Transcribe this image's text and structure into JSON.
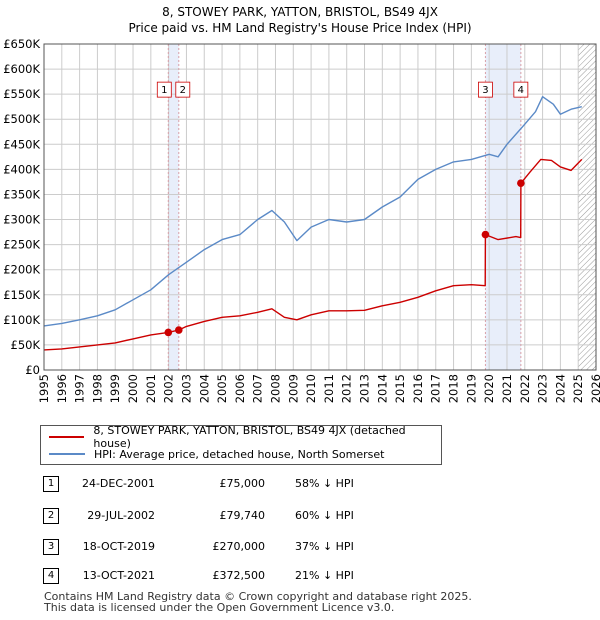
{
  "title_line1": "8, STOWEY PARK, YATTON, BRISTOL, BS49 4JX",
  "title_line2": "Price paid vs. HM Land Registry's House Price Index (HPI)",
  "colors": {
    "property": "#cc0000",
    "hpi": "#5b8ac7",
    "band": "#e8eefa",
    "grid": "#cccccc",
    "hatch": "#999999",
    "vline": "#d9a0a8"
  },
  "legend": {
    "property_label": "8, STOWEY PARK, YATTON, BRISTOL, BS49 4JX (detached house)",
    "hpi_label": "HPI: Average price, detached house, North Somerset"
  },
  "transactions": [
    {
      "num": "1",
      "date": "24-DEC-2001",
      "price": "£75,000",
      "hpi_diff": "58% ↓ HPI"
    },
    {
      "num": "2",
      "date": "29-JUL-2002",
      "price": "£79,740",
      "hpi_diff": "60% ↓ HPI"
    },
    {
      "num": "3",
      "date": "18-OCT-2019",
      "price": "£270,000",
      "hpi_diff": "37% ↓ HPI"
    },
    {
      "num": "4",
      "date": "13-OCT-2021",
      "price": "£372,500",
      "hpi_diff": "21% ↓ HPI"
    }
  ],
  "footer_line1": "Contains HM Land Registry data © Crown copyright and database right 2025.",
  "footer_line2": "This data is licensed under the Open Government Licence v3.0.",
  "chart_data": {
    "type": "line",
    "title": "Price paid vs. HM Land Registry's House Price Index (HPI)",
    "xlim": [
      1995,
      2026
    ],
    "ylim": [
      0,
      650000
    ],
    "x_ticks": [
      1995,
      1996,
      1997,
      1998,
      1999,
      2000,
      2001,
      2002,
      2003,
      2004,
      2005,
      2006,
      2007,
      2008,
      2009,
      2010,
      2011,
      2012,
      2013,
      2014,
      2015,
      2016,
      2017,
      2018,
      2019,
      2020,
      2021,
      2022,
      2023,
      2024,
      2025,
      2026
    ],
    "y_ticks": [
      0,
      50000,
      100000,
      150000,
      200000,
      250000,
      300000,
      350000,
      400000,
      450000,
      500000,
      550000,
      600000,
      650000
    ],
    "y_tick_labels": [
      "£0",
      "£50K",
      "£100K",
      "£150K",
      "£200K",
      "£250K",
      "£300K",
      "£350K",
      "£400K",
      "£450K",
      "£500K",
      "£550K",
      "£600K",
      "£650K"
    ],
    "grid": true,
    "shaded_periods": [
      [
        2001.98,
        2002.57
      ],
      [
        2019.79,
        2021.78
      ]
    ],
    "future_hatch_from": 2025.0,
    "series": [
      {
        "name": "8, STOWEY PARK, YATTON, BRISTOL, BS49 4JX (detached house)",
        "x": [
          1995,
          1996,
          1997,
          1998,
          1999,
          2000,
          2001,
          2001.98,
          2002.57,
          2003,
          2004,
          2005,
          2006,
          2007,
          2007.8,
          2008.5,
          2009.2,
          2010,
          2011,
          2012,
          2013,
          2014,
          2015,
          2016,
          2017,
          2018,
          2019,
          2019.78,
          2019.79,
          2020.5,
          2021.5,
          2021.77,
          2021.78,
          2022.3,
          2022.9,
          2023.5,
          2024,
          2024.6,
          2025.2
        ],
        "values": [
          40000,
          42000,
          46000,
          50000,
          54000,
          62000,
          70000,
          75000,
          79740,
          87000,
          97000,
          105000,
          108000,
          115000,
          122000,
          105000,
          100000,
          110000,
          118000,
          118000,
          119000,
          128000,
          135000,
          145000,
          158000,
          168000,
          170000,
          168000,
          270000,
          260000,
          266000,
          264000,
          372500,
          395000,
          420000,
          418000,
          405000,
          398000,
          420000
        ]
      },
      {
        "name": "HPI: Average price, detached house, North Somerset",
        "x": [
          1995,
          1996,
          1997,
          1998,
          1999,
          2000,
          2001,
          2002,
          2003,
          2004,
          2005,
          2006,
          2007,
          2007.8,
          2008.5,
          2009.2,
          2010,
          2011,
          2012,
          2013,
          2014,
          2015,
          2016,
          2017,
          2018,
          2019,
          2020,
          2020.5,
          2021,
          2022,
          2022.6,
          2023,
          2023.6,
          2024,
          2024.6,
          2025.2
        ],
        "values": [
          88000,
          93000,
          100000,
          108000,
          120000,
          140000,
          160000,
          190000,
          215000,
          240000,
          260000,
          270000,
          300000,
          318000,
          295000,
          258000,
          285000,
          300000,
          295000,
          300000,
          325000,
          345000,
          380000,
          400000,
          415000,
          420000,
          430000,
          425000,
          450000,
          490000,
          515000,
          545000,
          530000,
          510000,
          520000,
          525000
        ]
      }
    ],
    "markers": [
      {
        "label": "1",
        "x": 2001.98,
        "y": 75000
      },
      {
        "label": "2",
        "x": 2002.57,
        "y": 79740
      },
      {
        "label": "3",
        "x": 2019.79,
        "y": 270000
      },
      {
        "label": "4",
        "x": 2021.78,
        "y": 372500
      }
    ]
  }
}
